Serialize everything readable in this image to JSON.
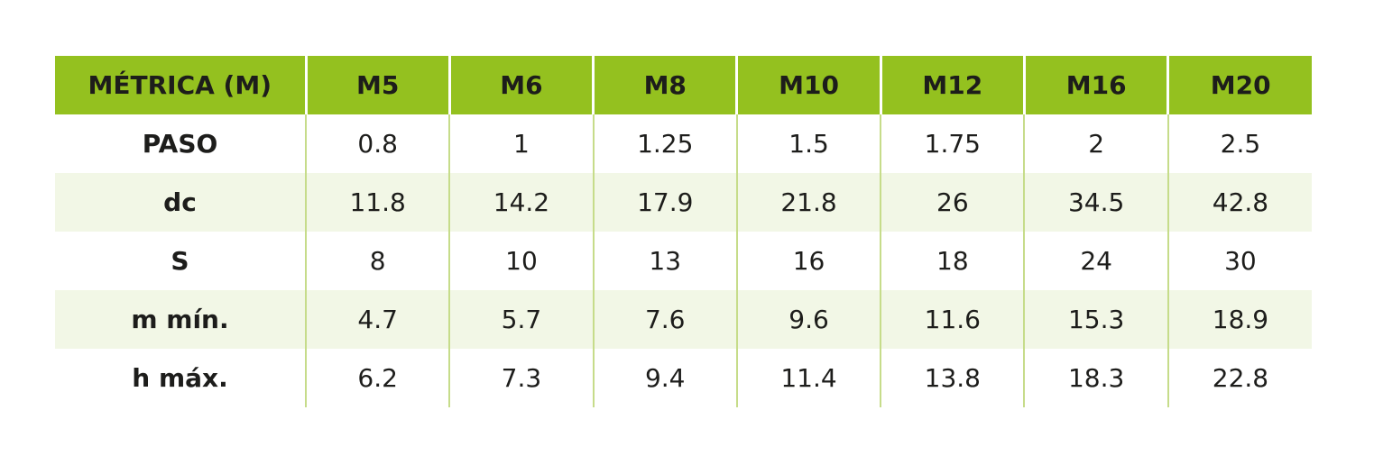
{
  "colors": {
    "header_bg": "#94c11f",
    "row_shade": "#f2f7e6",
    "divider": "#c6dc8a"
  },
  "table": {
    "header": [
      "MÉTRICA (M)",
      "M5",
      "M6",
      "M8",
      "M10",
      "M12",
      "M16",
      "M20"
    ],
    "rows": [
      {
        "label": "PASO",
        "values": [
          "0.8",
          "1",
          "1.25",
          "1.5",
          "1.75",
          "2",
          "2.5"
        ]
      },
      {
        "label": "dc",
        "values": [
          "11.8",
          "14.2",
          "17.9",
          "21.8",
          "26",
          "34.5",
          "42.8"
        ]
      },
      {
        "label": "S",
        "values": [
          "8",
          "10",
          "13",
          "16",
          "18",
          "24",
          "30"
        ]
      },
      {
        "label": "m mín.",
        "values": [
          "4.7",
          "5.7",
          "7.6",
          "9.6",
          "11.6",
          "15.3",
          "18.9"
        ]
      },
      {
        "label": "h máx.",
        "values": [
          "6.2",
          "7.3",
          "9.4",
          "11.4",
          "13.8",
          "18.3",
          "22.8"
        ]
      }
    ]
  }
}
